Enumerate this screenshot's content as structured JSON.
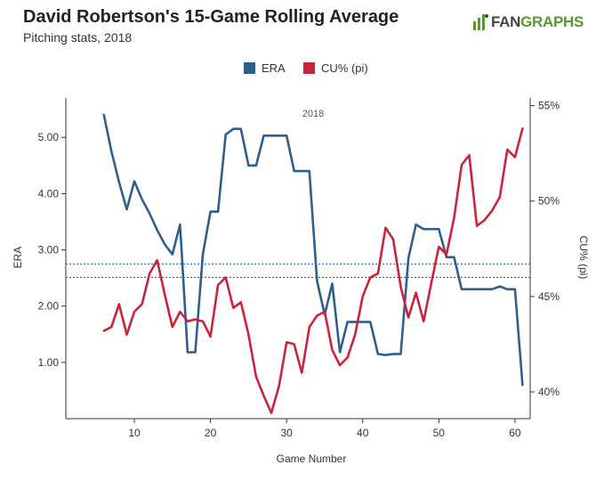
{
  "header": {
    "title": "David Robertson's 15-Game Rolling Average",
    "subtitle": "Pitching stats, 2018",
    "logo_text_a": "FAN",
    "logo_text_b": "GRAPHS"
  },
  "colors": {
    "era": "#2e5f8e",
    "cu": "#c8243a",
    "axis": "#333333",
    "logo_green": "#5a9a2a"
  },
  "chart_data": {
    "type": "line",
    "title": "2018",
    "xlabel": "Game Number",
    "ylabel": "ERA",
    "y2label": "CU% (pi)",
    "xlim": [
      1,
      62
    ],
    "xticks": [
      10,
      20,
      30,
      40,
      50,
      60
    ],
    "ylim": [
      0,
      5.7
    ],
    "yticks": [
      1.0,
      2.0,
      3.0,
      4.0,
      5.0
    ],
    "ytick_labels": [
      "1.00",
      "2.00",
      "3.00",
      "4.00",
      "5.00"
    ],
    "y2lim": [
      38.6,
      55.4
    ],
    "y2ticks": [
      40,
      45,
      50,
      55
    ],
    "y2tick_labels": [
      "40%",
      "45%",
      "50%",
      "55%"
    ],
    "legend": [
      "ERA",
      "CU% (pi)"
    ],
    "series": [
      {
        "name": "ERA",
        "axis": "left",
        "x": [
          6,
          7,
          8,
          9,
          10,
          11,
          12,
          13,
          14,
          15,
          16,
          17,
          18,
          19,
          20,
          21,
          22,
          23,
          24,
          25,
          26,
          27,
          28,
          29,
          30,
          31,
          32,
          33,
          34,
          35,
          36,
          37,
          38,
          39,
          40,
          41,
          42,
          43,
          44,
          45,
          46,
          47,
          48,
          49,
          50,
          51,
          52,
          53,
          54,
          55,
          56,
          57,
          58,
          59,
          60,
          61
        ],
        "values": [
          5.4,
          4.75,
          4.2,
          3.72,
          4.22,
          3.9,
          3.65,
          3.35,
          3.1,
          2.92,
          3.45,
          1.18,
          1.18,
          2.92,
          3.68,
          3.68,
          5.05,
          5.15,
          5.15,
          4.5,
          4.5,
          5.03,
          5.03,
          5.03,
          5.03,
          4.4,
          4.4,
          4.4,
          2.45,
          1.85,
          2.4,
          1.18,
          1.72,
          1.72,
          1.72,
          1.72,
          1.15,
          1.13,
          1.15,
          1.15,
          2.85,
          3.45,
          3.37,
          3.37,
          3.37,
          2.87,
          2.87,
          2.3,
          2.3,
          2.3,
          2.3,
          2.3,
          2.35,
          2.3,
          2.3,
          0.6
        ]
      },
      {
        "name": "CU% (pi)",
        "axis": "right",
        "x": [
          6,
          7,
          8,
          9,
          10,
          11,
          12,
          13,
          14,
          15,
          16,
          17,
          18,
          19,
          20,
          21,
          22,
          23,
          24,
          25,
          26,
          27,
          28,
          29,
          30,
          31,
          32,
          33,
          34,
          35,
          36,
          37,
          38,
          39,
          40,
          41,
          42,
          43,
          44,
          45,
          46,
          47,
          48,
          49,
          50,
          51,
          52,
          53,
          54,
          55,
          56,
          57,
          58,
          59,
          60,
          61
        ],
        "values": [
          43.2,
          43.4,
          44.6,
          43.0,
          44.2,
          44.6,
          46.2,
          46.9,
          45.1,
          43.4,
          44.2,
          43.7,
          43.8,
          43.7,
          42.9,
          45.6,
          46.0,
          44.4,
          44.7,
          43.0,
          40.8,
          39.8,
          38.9,
          40.3,
          42.6,
          42.5,
          41.0,
          43.4,
          44.0,
          44.2,
          42.2,
          41.4,
          41.8,
          43.0,
          45.0,
          46.0,
          46.2,
          48.6,
          48.0,
          45.5,
          43.9,
          45.2,
          43.7,
          45.7,
          47.6,
          47.2,
          49.1,
          51.9,
          52.4,
          48.7,
          49.0,
          49.5,
          50.2,
          52.7,
          52.3,
          53.8
        ]
      }
    ],
    "reference_lines": [
      {
        "series": "ERA",
        "axis": "left",
        "value": 2.75
      },
      {
        "series": "CU% (pi)",
        "axis": "right",
        "value": 46.0
      }
    ]
  }
}
